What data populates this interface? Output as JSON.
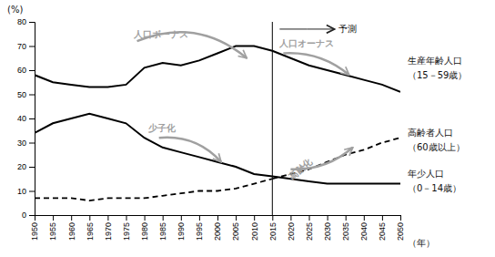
{
  "chart_data": {
    "type": "line",
    "x": [
      1950,
      1955,
      1960,
      1965,
      1970,
      1975,
      1980,
      1985,
      1990,
      1995,
      2000,
      2005,
      2010,
      2015,
      2020,
      2025,
      2030,
      2035,
      2040,
      2045,
      2050
    ],
    "series": [
      {
        "color": "#000000",
        "line_style": "solid",
        "values": [
          58,
          55,
          54,
          53,
          53,
          54,
          61,
          63,
          62,
          64,
          67,
          70,
          70,
          68,
          null,
          null,
          null,
          null,
          null,
          null,
          null
        ]
      },
      {
        "color": "#000000",
        "line_style": "solid",
        "values": [
          null,
          null,
          null,
          null,
          null,
          null,
          null,
          null,
          null,
          null,
          null,
          null,
          null,
          68,
          65,
          62,
          60,
          58,
          56,
          54,
          51
        ]
      },
      {
        "color": "#000000",
        "line_style": "solid",
        "values": [
          34,
          38,
          40,
          42,
          40,
          38,
          32,
          28,
          26,
          24,
          22,
          20,
          17,
          16,
          null,
          null,
          null,
          null,
          null,
          null,
          null
        ]
      },
      {
        "color": "#000000",
        "line_style": "solid",
        "values": [
          null,
          null,
          null,
          null,
          null,
          null,
          null,
          null,
          null,
          null,
          null,
          null,
          null,
          16,
          15,
          14,
          13,
          13,
          13,
          13,
          13
        ]
      },
      {
        "color": "#000000",
        "line_style": "dashed",
        "values": [
          7,
          7,
          7,
          6,
          7,
          7,
          7,
          8,
          9,
          10,
          10,
          11,
          13,
          15,
          null,
          null,
          null,
          null,
          null,
          null,
          null
        ]
      },
      {
        "color": "#000000",
        "line_style": "dashed",
        "values": [
          null,
          null,
          null,
          null,
          null,
          null,
          null,
          null,
          null,
          null,
          null,
          null,
          null,
          15,
          17,
          19,
          22,
          25,
          27,
          30,
          32
        ]
      }
    ],
    "xlim": [
      1950,
      2050
    ],
    "xticks": [
      1950,
      1955,
      1960,
      1965,
      1970,
      1975,
      1980,
      1985,
      1990,
      1995,
      2000,
      2005,
      2010,
      2015,
      2020,
      2025,
      2030,
      2035,
      2040,
      2045,
      2050
    ],
    "ylim": [
      0,
      80
    ],
    "yticks": [
      0,
      10,
      20,
      30,
      40,
      50,
      60,
      70,
      80
    ],
    "xlabel": "（年）",
    "ylabel": "(%)",
    "grid": false,
    "forecast_year": 2015,
    "annotations": [
      "生産年齢人口",
      "（15－59歳）",
      "高齢者人口",
      "（60歳以上）",
      "年少人口",
      "（0－14歳）",
      "予測",
      "人口ボーナス",
      "人口オーナス",
      "少子化",
      "高齢化"
    ]
  }
}
